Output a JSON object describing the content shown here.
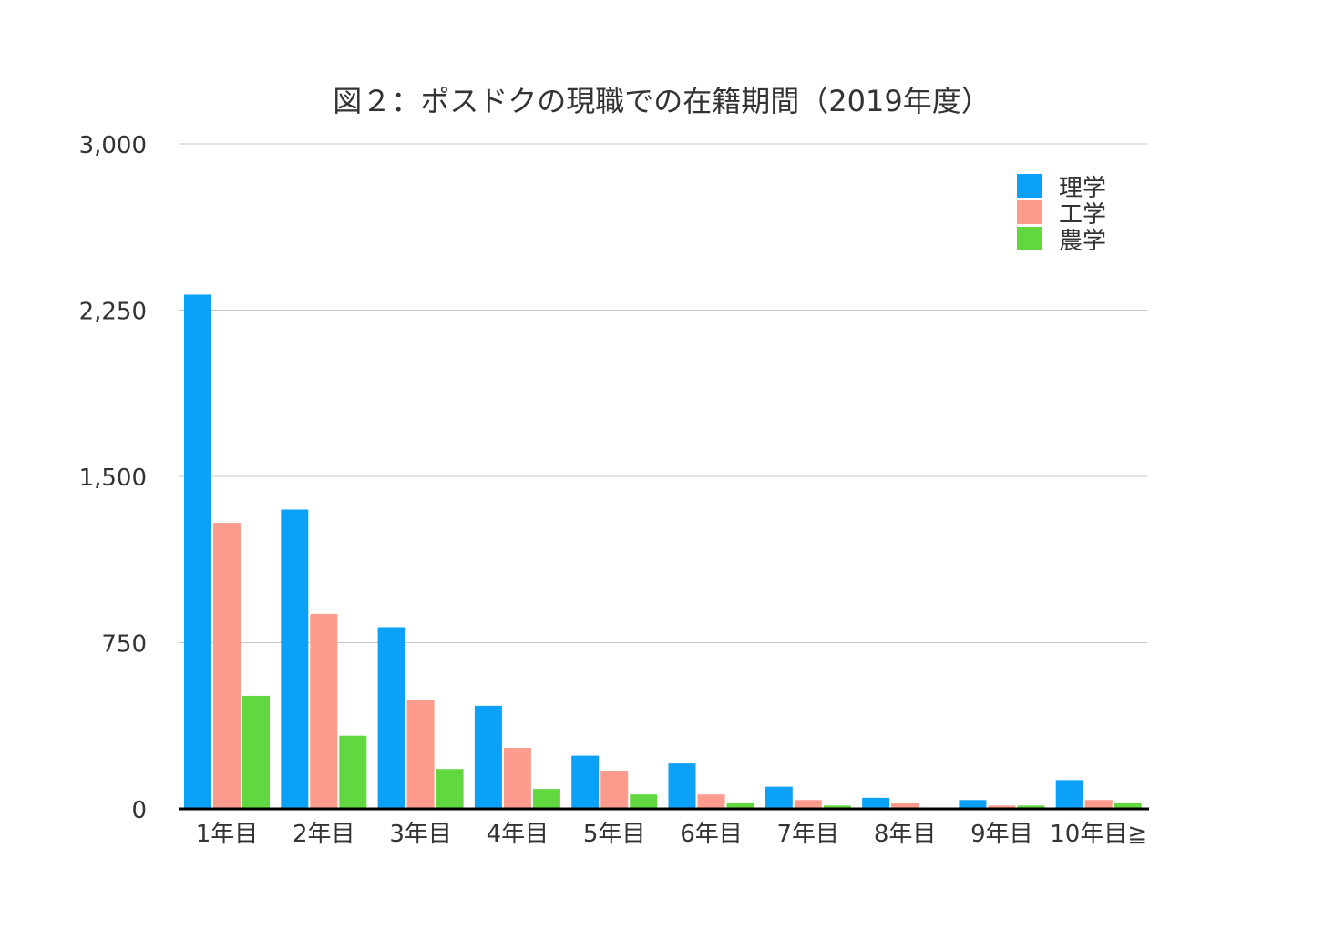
{
  "chart_data": {
    "type": "bar",
    "title": "図２：ポスドクの現職での在籍期間（2019年度）",
    "xlabel": "",
    "ylabel": "",
    "ylim": [
      0,
      3000
    ],
    "yticks": [
      "0",
      "750",
      "1,500",
      "2,250",
      "3,000"
    ],
    "ytick_values": [
      0,
      750,
      1500,
      2250,
      3000
    ],
    "grid": true,
    "legend_position": "top-right",
    "categories": [
      "1年目",
      "2年目",
      "3年目",
      "4年目",
      "5年目",
      "6年目",
      "7年目",
      "8年目",
      "9年目",
      "10年目≧"
    ],
    "series": [
      {
        "name": "理学",
        "color": "#0ba1f8",
        "values": [
          2320,
          1350,
          820,
          465,
          240,
          205,
          100,
          50,
          40,
          130
        ]
      },
      {
        "name": "工学",
        "color": "#fd9b8d",
        "values": [
          1290,
          880,
          490,
          275,
          170,
          65,
          40,
          25,
          15,
          40
        ]
      },
      {
        "name": "農学",
        "color": "#61d83f",
        "values": [
          510,
          330,
          180,
          90,
          65,
          25,
          15,
          5,
          15,
          25
        ]
      }
    ]
  }
}
